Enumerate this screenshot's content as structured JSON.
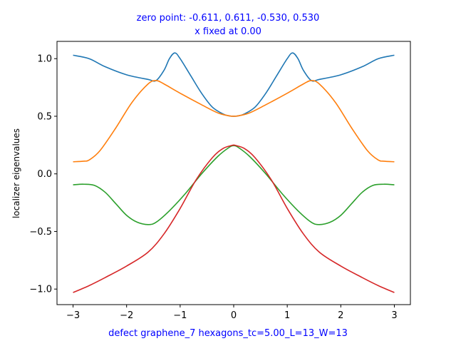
{
  "chart_data": {
    "type": "line",
    "title_lines": [
      "zero point: -0.611, 0.611, -0.530, 0.530",
      "x fixed at 0.00"
    ],
    "xlabel": "defect graphene_7 hexagons_tc=5.00_L=13_W=13",
    "ylabel": "localizer eigenvalues",
    "xlim": [
      -3.3,
      3.3
    ],
    "ylim": [
      -1.135,
      1.15
    ],
    "xticks": [
      -3,
      -2,
      -1,
      0,
      1,
      2,
      3
    ],
    "xtick_labels": [
      "−3",
      "−2",
      "−1",
      "0",
      "1",
      "2",
      "3"
    ],
    "yticks": [
      -1.0,
      -0.5,
      0.0,
      0.5,
      1.0
    ],
    "ytick_labels": [
      "−1.0",
      "−0.5",
      "0.0",
      "0.5",
      "1.0"
    ],
    "grid": false,
    "series": [
      {
        "color": "#1f77b4",
        "x": [
          -3.0,
          -2.7,
          -2.4,
          -2.0,
          -1.6,
          -1.45,
          -1.3,
          -1.2,
          -1.1,
          -1.0,
          -0.8,
          -0.6,
          -0.4,
          -0.2,
          -0.1,
          0.0,
          0.1,
          0.2,
          0.4,
          0.6,
          0.8,
          1.0,
          1.1,
          1.2,
          1.3,
          1.45,
          1.6,
          2.0,
          2.4,
          2.7,
          3.0
        ],
        "y": [
          1.03,
          1.0,
          0.93,
          0.86,
          0.82,
          0.81,
          0.9,
          1.0,
          1.05,
          1.0,
          0.85,
          0.7,
          0.58,
          0.52,
          0.505,
          0.5,
          0.505,
          0.52,
          0.58,
          0.7,
          0.85,
          1.0,
          1.05,
          1.0,
          0.9,
          0.81,
          0.82,
          0.86,
          0.93,
          1.0,
          1.03
        ]
      },
      {
        "color": "#ff7f0e",
        "x": [
          -3.0,
          -2.8,
          -2.7,
          -2.5,
          -2.2,
          -1.9,
          -1.6,
          -1.45,
          -1.3,
          -1.0,
          -0.6,
          -0.3,
          -0.1,
          0.0,
          0.1,
          0.3,
          0.6,
          1.0,
          1.3,
          1.45,
          1.6,
          1.9,
          2.2,
          2.5,
          2.7,
          2.8,
          3.0
        ],
        "y": [
          0.105,
          0.11,
          0.12,
          0.2,
          0.4,
          0.62,
          0.78,
          0.81,
          0.78,
          0.7,
          0.6,
          0.53,
          0.505,
          0.5,
          0.505,
          0.53,
          0.6,
          0.7,
          0.78,
          0.81,
          0.78,
          0.62,
          0.4,
          0.2,
          0.12,
          0.11,
          0.105
        ]
      },
      {
        "color": "#2ca02c",
        "x": [
          -3.0,
          -2.8,
          -2.6,
          -2.4,
          -2.2,
          -2.0,
          -1.8,
          -1.6,
          -1.45,
          -1.2,
          -0.9,
          -0.6,
          -0.3,
          -0.1,
          0.0,
          0.1,
          0.3,
          0.6,
          0.9,
          1.2,
          1.45,
          1.6,
          1.8,
          2.0,
          2.2,
          2.4,
          2.6,
          2.8,
          3.0
        ],
        "y": [
          -0.095,
          -0.09,
          -0.1,
          -0.16,
          -0.26,
          -0.36,
          -0.42,
          -0.44,
          -0.42,
          -0.32,
          -0.17,
          0.0,
          0.15,
          0.225,
          0.245,
          0.225,
          0.15,
          0.0,
          -0.17,
          -0.32,
          -0.42,
          -0.44,
          -0.42,
          -0.36,
          -0.26,
          -0.16,
          -0.1,
          -0.09,
          -0.095
        ]
      },
      {
        "color": "#d62728",
        "x": [
          -3.0,
          -2.7,
          -2.4,
          -2.0,
          -1.6,
          -1.3,
          -1.0,
          -0.7,
          -0.4,
          -0.2,
          -0.05,
          0.0,
          0.05,
          0.2,
          0.4,
          0.7,
          1.0,
          1.3,
          1.6,
          2.0,
          2.4,
          2.7,
          3.0
        ],
        "y": [
          -1.03,
          -0.97,
          -0.9,
          -0.8,
          -0.68,
          -0.52,
          -0.3,
          -0.05,
          0.14,
          0.22,
          0.245,
          0.25,
          0.245,
          0.22,
          0.14,
          -0.05,
          -0.3,
          -0.52,
          -0.68,
          -0.8,
          -0.9,
          -0.97,
          -1.03
        ]
      }
    ]
  }
}
